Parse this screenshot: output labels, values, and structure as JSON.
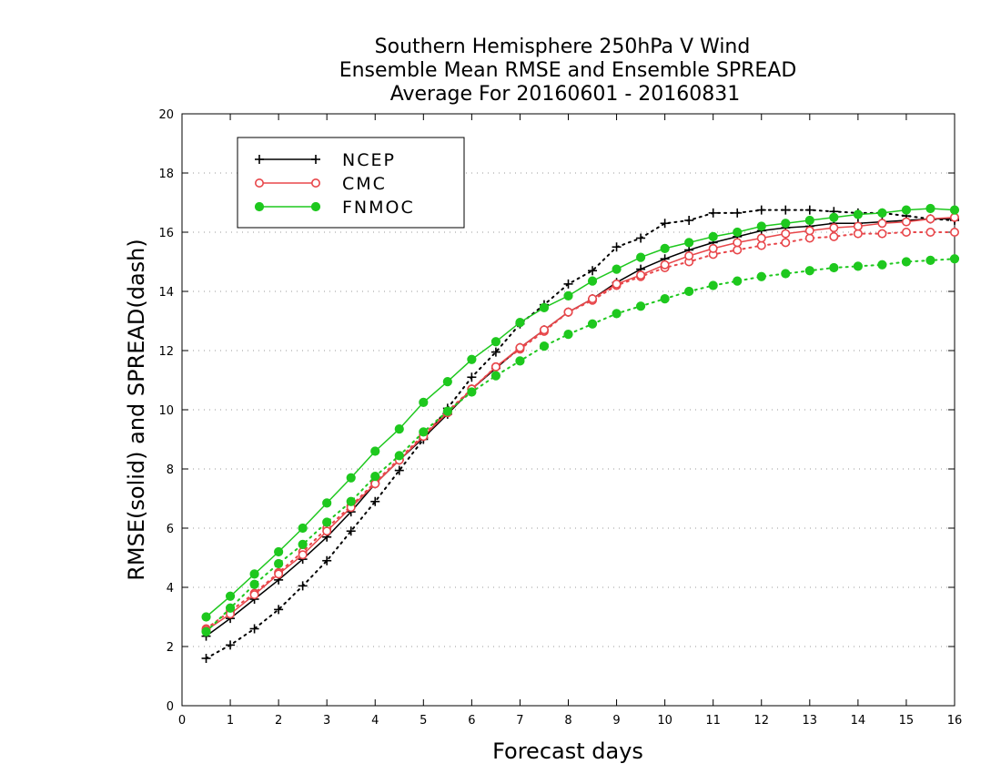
{
  "chart_data": {
    "type": "line",
    "title": [
      "Southern Hemisphere 250hPa V Wind",
      "Ensemble Mean RMSE and Ensemble SPREAD",
      "Average For 20160601 - 20160831"
    ],
    "xlabel": "Forecast days",
    "ylabel": "RMSE(solid) and SPREAD(dash)",
    "xlim": [
      0,
      16
    ],
    "ylim": [
      0,
      20
    ],
    "xticks": [
      "0",
      "1",
      "2",
      "3",
      "4",
      "5",
      "6",
      "7",
      "8",
      "9",
      "10",
      "11",
      "12",
      "13",
      "14",
      "15",
      "16"
    ],
    "yticks": [
      "0",
      "2",
      "4",
      "6",
      "8",
      "10",
      "12",
      "14",
      "16",
      "18",
      "20"
    ],
    "grid": "horizontal dotted",
    "legend_position": "top-left",
    "x": [
      0.5,
      1,
      1.5,
      2,
      2.5,
      3,
      3.5,
      4,
      4.5,
      5,
      5.5,
      6,
      6.5,
      7,
      7.5,
      8,
      8.5,
      9,
      9.5,
      10,
      10.5,
      11,
      11.5,
      12,
      12.5,
      13,
      13.5,
      14,
      14.5,
      15,
      15.5,
      16
    ],
    "series": [
      {
        "name": "NCEP",
        "color": "#000000",
        "marker": "plus",
        "rmse": [
          2.35,
          2.95,
          3.6,
          4.25,
          4.95,
          5.7,
          6.55,
          7.5,
          8.3,
          9.05,
          9.85,
          10.7,
          11.4,
          12.1,
          12.7,
          13.3,
          13.75,
          14.3,
          14.75,
          15.1,
          15.4,
          15.65,
          15.85,
          16.05,
          16.15,
          16.2,
          16.3,
          16.3,
          16.35,
          16.4,
          16.45,
          16.45
        ],
        "spread": [
          1.6,
          2.05,
          2.6,
          3.25,
          4.05,
          4.9,
          5.9,
          6.9,
          7.95,
          9.0,
          10.05,
          11.1,
          11.95,
          12.9,
          13.55,
          14.25,
          14.7,
          15.5,
          15.8,
          16.3,
          16.4,
          16.65,
          16.65,
          16.75,
          16.75,
          16.75,
          16.7,
          16.65,
          16.65,
          16.55,
          16.45,
          16.4
        ]
      },
      {
        "name": "CMC",
        "color": "#e8464a",
        "marker": "open-circle",
        "rmse": [
          2.55,
          3.1,
          3.75,
          4.45,
          5.1,
          5.9,
          6.7,
          7.5,
          8.3,
          9.1,
          9.9,
          10.7,
          11.45,
          12.1,
          12.7,
          13.3,
          13.75,
          14.25,
          14.55,
          14.9,
          15.2,
          15.45,
          15.65,
          15.8,
          15.95,
          16.05,
          16.15,
          16.2,
          16.3,
          16.35,
          16.45,
          16.5
        ],
        "spread": [
          2.6,
          3.2,
          3.8,
          4.5,
          5.2,
          6.0,
          6.75,
          7.55,
          8.35,
          9.15,
          9.95,
          10.7,
          11.45,
          12.05,
          12.65,
          13.3,
          13.7,
          14.2,
          14.5,
          14.8,
          15.0,
          15.25,
          15.4,
          15.55,
          15.65,
          15.8,
          15.85,
          15.95,
          15.95,
          16.0,
          16.0,
          16.0
        ]
      },
      {
        "name": "FNMOC",
        "color": "#1ec81e",
        "marker": "filled-circle",
        "rmse": [
          3.0,
          3.7,
          4.45,
          5.2,
          6.0,
          6.85,
          7.7,
          8.6,
          9.35,
          10.25,
          10.95,
          11.7,
          12.3,
          12.95,
          13.45,
          13.85,
          14.35,
          14.75,
          15.15,
          15.45,
          15.65,
          15.85,
          16.0,
          16.2,
          16.3,
          16.4,
          16.5,
          16.6,
          16.65,
          16.75,
          16.8,
          16.75
        ],
        "spread": [
          2.5,
          3.3,
          4.1,
          4.8,
          5.45,
          6.2,
          6.9,
          7.75,
          8.45,
          9.25,
          9.95,
          10.6,
          11.15,
          11.65,
          12.15,
          12.55,
          12.9,
          13.25,
          13.5,
          13.75,
          14.0,
          14.2,
          14.35,
          14.5,
          14.6,
          14.7,
          14.8,
          14.85,
          14.9,
          15.0,
          15.05,
          15.1
        ]
      }
    ]
  }
}
